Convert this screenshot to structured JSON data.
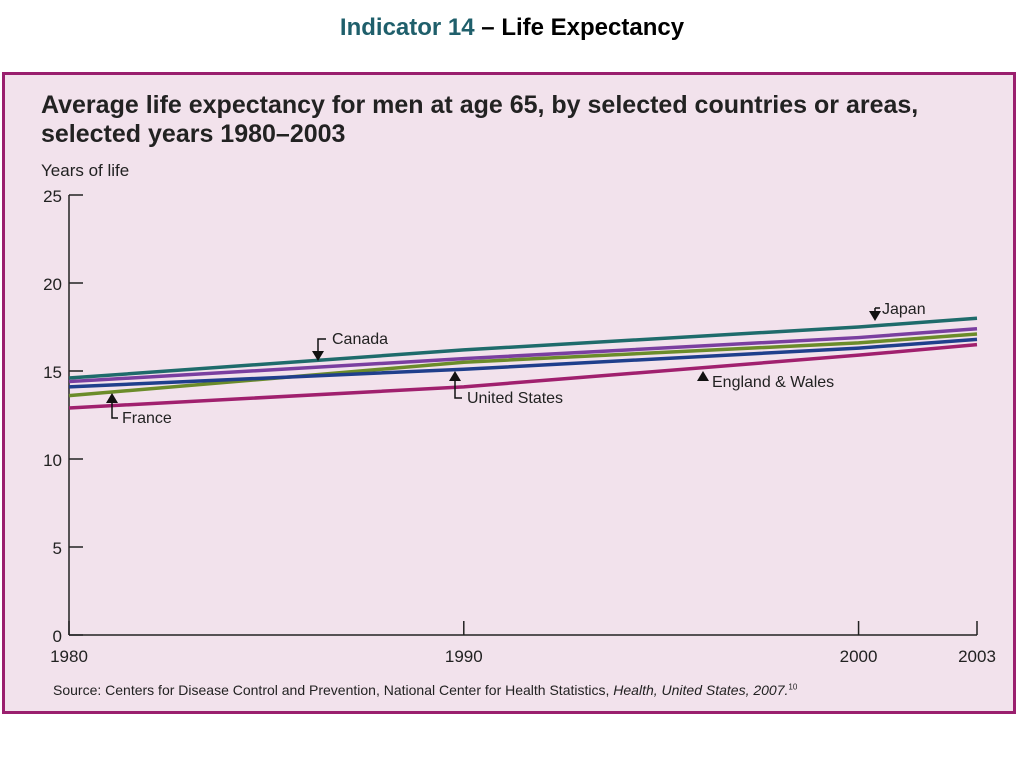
{
  "slide": {
    "indicator": "Indicator 14",
    "title_rest": " – Life Expectancy"
  },
  "chart_data": {
    "type": "line",
    "title": "Average life expectancy for men at age 65, by selected countries or areas, selected years 1980–2003",
    "ylabel": "Years of life",
    "xlabel": "",
    "ylim": [
      0,
      25
    ],
    "xlim": [
      1980,
      2003
    ],
    "yticks": [
      0,
      5,
      10,
      15,
      20,
      25
    ],
    "xticks": [
      1980,
      1990,
      2000,
      2003
    ],
    "grid": false,
    "series": [
      {
        "name": "Japan",
        "color": "#1f6b6b",
        "x": [
          1980,
          1990,
          2000,
          2003
        ],
        "y": [
          14.6,
          16.2,
          17.5,
          18.0
        ]
      },
      {
        "name": "Canada",
        "color": "#7a3fa0",
        "x": [
          1980,
          1990,
          2000,
          2003
        ],
        "y": [
          14.4,
          15.7,
          16.9,
          17.4
        ]
      },
      {
        "name": "France",
        "color": "#6b8c2a",
        "x": [
          1980,
          1990,
          2000,
          2003
        ],
        "y": [
          13.6,
          15.5,
          16.6,
          17.1
        ]
      },
      {
        "name": "United States",
        "color": "#1f3f8c",
        "x": [
          1980,
          1990,
          2000,
          2003
        ],
        "y": [
          14.1,
          15.1,
          16.3,
          16.8
        ]
      },
      {
        "name": "England & Wales",
        "color": "#a0206e",
        "x": [
          1980,
          1990,
          2000,
          2003
        ],
        "y": [
          12.9,
          14.1,
          15.9,
          16.5
        ]
      }
    ],
    "annotations": [
      "Japan",
      "Canada",
      "United States",
      "England & Wales",
      "France"
    ]
  },
  "source": {
    "prefix": "Source:  Centers for Disease Control and Prevention, National Center for Health Statistics, ",
    "italic": "Health, United States, 2007.",
    "sup": "10"
  }
}
